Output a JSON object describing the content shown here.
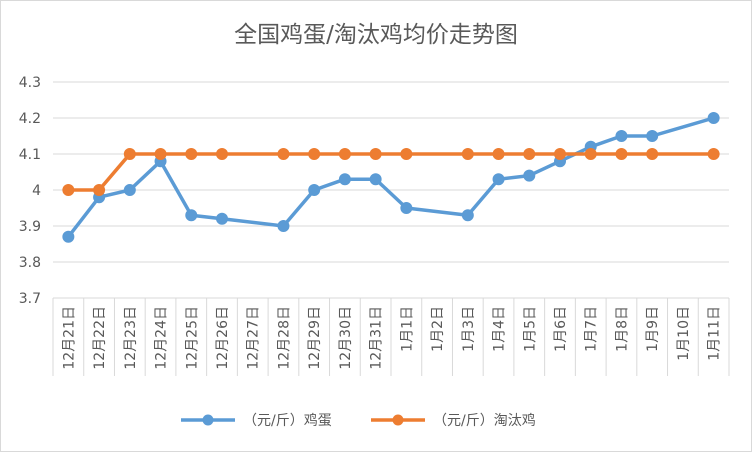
{
  "chart_data": {
    "type": "line",
    "title": "全国鸡蛋/淘汰鸡均价走势图",
    "xlabel": "",
    "ylabel": "",
    "ylim": [
      3.7,
      4.3
    ],
    "yticks": [
      "3.7",
      "3.8",
      "3.9",
      "4",
      "4.1",
      "4.2",
      "4.3"
    ],
    "grid": true,
    "legend_position": "bottom",
    "categories": [
      "12月21日",
      "12月22日",
      "12月23日",
      "12月24日",
      "12月25日",
      "12月26日",
      "12月27日",
      "12月28日",
      "12月29日",
      "12月30日",
      "12月31日",
      "1月1日",
      "1月2日",
      "1月3日",
      "1月4日",
      "1月5日",
      "1月6日",
      "1月7日",
      "1月8日",
      "1月9日",
      "1月10日",
      "1月11日"
    ],
    "series": [
      {
        "name": "（元/斤）鸡蛋",
        "color": "#5b9bd5",
        "values": [
          3.87,
          3.98,
          4.0,
          4.08,
          3.93,
          3.92,
          null,
          3.9,
          4.0,
          4.03,
          4.03,
          3.95,
          null,
          3.93,
          4.03,
          4.04,
          4.08,
          4.12,
          4.15,
          4.15,
          null,
          4.2
        ]
      },
      {
        "name": "（元/斤）淘汰鸡",
        "color": "#ed7d31",
        "values": [
          4.0,
          4.0,
          4.1,
          4.1,
          4.1,
          4.1,
          null,
          4.1,
          4.1,
          4.1,
          4.1,
          4.1,
          null,
          4.1,
          4.1,
          4.1,
          4.1,
          4.1,
          4.1,
          4.1,
          null,
          4.1
        ]
      }
    ]
  }
}
